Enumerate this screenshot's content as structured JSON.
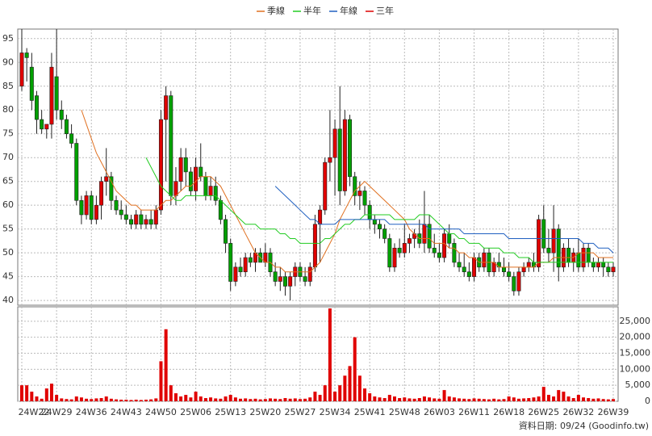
{
  "chart_data": {
    "type": "candlestick",
    "grid": true,
    "up_color": "#e00000",
    "down_color": "#00a000",
    "ylim": [
      39,
      97
    ],
    "yticks": [
      40,
      45,
      50,
      55,
      60,
      65,
      70,
      75,
      80,
      85,
      90,
      95
    ],
    "categories": [
      "24W22",
      null,
      null,
      null,
      null,
      null,
      null,
      "24W29",
      null,
      null,
      null,
      null,
      null,
      null,
      "24W36",
      null,
      null,
      null,
      null,
      null,
      null,
      "24W43",
      null,
      null,
      null,
      null,
      null,
      null,
      "24W50",
      null,
      null,
      null,
      null,
      null,
      null,
      "25W06",
      null,
      null,
      null,
      null,
      null,
      null,
      "25W13",
      null,
      null,
      null,
      null,
      null,
      null,
      "25W20",
      null,
      null,
      null,
      null,
      null,
      null,
      "25W27",
      null,
      null,
      null,
      null,
      null,
      null,
      "25W34",
      null,
      null,
      null,
      null,
      null,
      null,
      "25W41",
      null,
      null,
      null,
      null,
      null,
      null,
      "25W48",
      null,
      null,
      null,
      null,
      null,
      null,
      "26W03",
      null,
      null,
      null,
      null,
      null,
      null,
      "26W11",
      null,
      null,
      null,
      null,
      null,
      null,
      "26W18",
      null,
      null,
      null,
      null,
      null,
      null,
      "26W25",
      null,
      null,
      null,
      null,
      null,
      null,
      "26W32",
      null,
      null,
      null,
      null,
      null,
      null,
      "26W39"
    ],
    "candles": [
      [
        85,
        97,
        84,
        92
      ],
      [
        92,
        93,
        86,
        91
      ],
      [
        89,
        92,
        80,
        82
      ],
      [
        83,
        84,
        75,
        78
      ],
      [
        78,
        80,
        75,
        76
      ],
      [
        76,
        77,
        74,
        77
      ],
      [
        77,
        92,
        74,
        89
      ],
      [
        87,
        97,
        78,
        80
      ],
      [
        80,
        82,
        76,
        78
      ],
      [
        78,
        79,
        74,
        75
      ],
      [
        75,
        77,
        72,
        73
      ],
      [
        73,
        74,
        60,
        61
      ],
      [
        61,
        62,
        56,
        58
      ],
      [
        58,
        63,
        57,
        62
      ],
      [
        62,
        63,
        56,
        57
      ],
      [
        57,
        62,
        56,
        60
      ],
      [
        60,
        66,
        57,
        65
      ],
      [
        65,
        72,
        62,
        66
      ],
      [
        66,
        67,
        59,
        61
      ],
      [
        61,
        62,
        58,
        59
      ],
      [
        59,
        61,
        57,
        58
      ],
      [
        58,
        60,
        56,
        57
      ],
      [
        57,
        58,
        55,
        56
      ],
      [
        56,
        59,
        55,
        58
      ],
      [
        58,
        59,
        55,
        56
      ],
      [
        56,
        58,
        55,
        57
      ],
      [
        57,
        59,
        55,
        56
      ],
      [
        56,
        60,
        55,
        59
      ],
      [
        59,
        80,
        58,
        78
      ],
      [
        78,
        85,
        65,
        83
      ],
      [
        83,
        84,
        60,
        62
      ],
      [
        62,
        68,
        60,
        65
      ],
      [
        65,
        72,
        63,
        70
      ],
      [
        70,
        72,
        64,
        67
      ],
      [
        67,
        68,
        62,
        63
      ],
      [
        63,
        70,
        61,
        68
      ],
      [
        68,
        73,
        65,
        66
      ],
      [
        66,
        67,
        61,
        62
      ],
      [
        62,
        66,
        61,
        64
      ],
      [
        64,
        66,
        60,
        61
      ],
      [
        61,
        62,
        56,
        57
      ],
      [
        57,
        58,
        50,
        52
      ],
      [
        52,
        53,
        42,
        44
      ],
      [
        44,
        48,
        43,
        47
      ],
      [
        47,
        49,
        45,
        46
      ],
      [
        46,
        50,
        45,
        49
      ],
      [
        49,
        50,
        47,
        48
      ],
      [
        48,
        51,
        46,
        50
      ],
      [
        50,
        51,
        48,
        48
      ],
      [
        48,
        52,
        47,
        50
      ],
      [
        50,
        51,
        45,
        46
      ],
      [
        46,
        48,
        43,
        44
      ],
      [
        44,
        47,
        42,
        45
      ],
      [
        45,
        46,
        41,
        43
      ],
      [
        43,
        46,
        40,
        45
      ],
      [
        45,
        48,
        43,
        47
      ],
      [
        47,
        48,
        44,
        45
      ],
      [
        45,
        47,
        43,
        44
      ],
      [
        44,
        48,
        43,
        47
      ],
      [
        47,
        58,
        46,
        56
      ],
      [
        56,
        60,
        48,
        59
      ],
      [
        59,
        70,
        58,
        69
      ],
      [
        69,
        80,
        65,
        70
      ],
      [
        70,
        78,
        62,
        76
      ],
      [
        76,
        85,
        60,
        63
      ],
      [
        63,
        80,
        62,
        78
      ],
      [
        78,
        79,
        64,
        66
      ],
      [
        66,
        67,
        60,
        62
      ],
      [
        62,
        65,
        59,
        63
      ],
      [
        63,
        64,
        58,
        60
      ],
      [
        60,
        61,
        55,
        57
      ],
      [
        57,
        58,
        54,
        56
      ],
      [
        56,
        57,
        53,
        55
      ],
      [
        55,
        56,
        52,
        53
      ],
      [
        53,
        54,
        46,
        47
      ],
      [
        47,
        52,
        46,
        51
      ],
      [
        51,
        53,
        49,
        50
      ],
      [
        50,
        56,
        49,
        52
      ],
      [
        52,
        54,
        50,
        53
      ],
      [
        53,
        55,
        51,
        54
      ],
      [
        54,
        57,
        51,
        52
      ],
      [
        52,
        63,
        50,
        56
      ],
      [
        56,
        58,
        50,
        51
      ],
      [
        51,
        54,
        49,
        50
      ],
      [
        50,
        52,
        48,
        49
      ],
      [
        49,
        55,
        48,
        54
      ],
      [
        54,
        56,
        51,
        52
      ],
      [
        52,
        53,
        47,
        48
      ],
      [
        48,
        50,
        46,
        47
      ],
      [
        47,
        50,
        45,
        46
      ],
      [
        46,
        48,
        44,
        45
      ],
      [
        45,
        50,
        44,
        49
      ],
      [
        49,
        50,
        46,
        47
      ],
      [
        47,
        51,
        46,
        50
      ],
      [
        50,
        51,
        45,
        46
      ],
      [
        46,
        49,
        45,
        48
      ],
      [
        48,
        50,
        46,
        47
      ],
      [
        47,
        49,
        45,
        46
      ],
      [
        46,
        48,
        44,
        45
      ],
      [
        45,
        46,
        41,
        42
      ],
      [
        42,
        47,
        41,
        46
      ],
      [
        46,
        48,
        45,
        47
      ],
      [
        47,
        49,
        46,
        48
      ],
      [
        48,
        50,
        46,
        47
      ],
      [
        47,
        58,
        46,
        57
      ],
      [
        57,
        60,
        50,
        51
      ],
      [
        51,
        55,
        48,
        50
      ],
      [
        50,
        60,
        46,
        55
      ],
      [
        55,
        56,
        44,
        47
      ],
      [
        47,
        52,
        46,
        51
      ],
      [
        51,
        53,
        47,
        48
      ],
      [
        48,
        51,
        46,
        50
      ],
      [
        50,
        53,
        46,
        47
      ],
      [
        47,
        52,
        46,
        51
      ],
      [
        51,
        52,
        47,
        48
      ],
      [
        48,
        49,
        46,
        47
      ],
      [
        47,
        49,
        46,
        48
      ],
      [
        48,
        49,
        45,
        47
      ],
      [
        47,
        48,
        45,
        46
      ],
      [
        46,
        48,
        45,
        47
      ]
    ],
    "series": [
      {
        "name": "季線",
        "color": "#e07020",
        "values": [
          null,
          null,
          null,
          null,
          null,
          null,
          null,
          null,
          null,
          null,
          null,
          null,
          80,
          77,
          74,
          71,
          69,
          67,
          65,
          63,
          62,
          61,
          60,
          60,
          59,
          59,
          59,
          59,
          60,
          61,
          61,
          62,
          63,
          64,
          64,
          65,
          66,
          66,
          66,
          65,
          64,
          62,
          60,
          58,
          56,
          54,
          52,
          50,
          49,
          48,
          48,
          47,
          47,
          46,
          46,
          46,
          46,
          46,
          46,
          47,
          48,
          50,
          52,
          54,
          57,
          59,
          61,
          63,
          64,
          65,
          64,
          63,
          62,
          61,
          60,
          59,
          58,
          57,
          55,
          54,
          53,
          53,
          53,
          52,
          52,
          52,
          51,
          51,
          50,
          50,
          49,
          49,
          48,
          48,
          48,
          48,
          47,
          47,
          47,
          47,
          47,
          47,
          47,
          47,
          48,
          48,
          48,
          49,
          49,
          49,
          49,
          49,
          50,
          50,
          50,
          50,
          49,
          49,
          49,
          49
        ]
      },
      {
        "name": "半年",
        "color": "#22cc22",
        "values": [
          null,
          null,
          null,
          null,
          null,
          null,
          null,
          null,
          null,
          null,
          null,
          null,
          null,
          null,
          null,
          null,
          null,
          null,
          null,
          null,
          null,
          null,
          null,
          null,
          null,
          70,
          68,
          66,
          64,
          63,
          62,
          61,
          61,
          62,
          62,
          62,
          62,
          62,
          62,
          62,
          61,
          60,
          59,
          58,
          57,
          56,
          56,
          56,
          55,
          55,
          55,
          55,
          54,
          54,
          53,
          53,
          52,
          52,
          52,
          52,
          52,
          53,
          53,
          54,
          55,
          56,
          56,
          57,
          57,
          58,
          58,
          58,
          58,
          58,
          58,
          57,
          57,
          57,
          57,
          57,
          58,
          58,
          58,
          57,
          56,
          55,
          54,
          54,
          53,
          53,
          52,
          52,
          52,
          51,
          51,
          51,
          51,
          50,
          50,
          50,
          49,
          49,
          49,
          48,
          48,
          48,
          48,
          48,
          48,
          48,
          48,
          48,
          48,
          48,
          48,
          48,
          48,
          48,
          48,
          48
        ]
      },
      {
        "name": "年線",
        "color": "#2060c0",
        "values": [
          null,
          null,
          null,
          null,
          null,
          null,
          null,
          null,
          null,
          null,
          null,
          null,
          null,
          null,
          null,
          null,
          null,
          null,
          null,
          null,
          null,
          null,
          null,
          null,
          null,
          null,
          null,
          null,
          null,
          null,
          null,
          null,
          null,
          null,
          null,
          null,
          null,
          null,
          null,
          null,
          null,
          null,
          null,
          null,
          null,
          null,
          null,
          null,
          null,
          null,
          null,
          64,
          63,
          62,
          61,
          60,
          59,
          58,
          57,
          57,
          56,
          56,
          56,
          56,
          57,
          57,
          57,
          57,
          57,
          57,
          57,
          57,
          57,
          57,
          56,
          56,
          56,
          56,
          56,
          56,
          56,
          56,
          55,
          55,
          55,
          55,
          55,
          55,
          55,
          54,
          54,
          54,
          54,
          54,
          54,
          54,
          54,
          54,
          53,
          53,
          53,
          53,
          53,
          53,
          53,
          53,
          53,
          53,
          53,
          53,
          53,
          53,
          53,
          52,
          52,
          52,
          51,
          51,
          51,
          50
        ]
      },
      {
        "name": "三年",
        "color": "#dd0000"
      }
    ],
    "volume": {
      "type": "bar",
      "color": "#e00000",
      "ylim": [
        0,
        29500
      ],
      "yticks": [
        0,
        {
          "value": 5000,
          "label": "5,000"
        },
        {
          "value": 10000,
          "label": "10,000"
        },
        {
          "value": 15000,
          "label": "15,000"
        },
        {
          "value": 20000,
          "label": "20,000"
        },
        {
          "value": 25000,
          "label": "25,000"
        }
      ],
      "values": [
        5000,
        5000,
        3000,
        1500,
        800,
        4000,
        5500,
        2000,
        900,
        700,
        600,
        1500,
        1200,
        800,
        700,
        900,
        1000,
        1500,
        800,
        600,
        500,
        500,
        400,
        500,
        400,
        500,
        600,
        900,
        12500,
        22500,
        5000,
        2500,
        1500,
        2000,
        1200,
        3000,
        1500,
        1000,
        1200,
        900,
        800,
        1500,
        2000,
        1200,
        800,
        900,
        700,
        800,
        600,
        700,
        900,
        800,
        700,
        1000,
        800,
        900,
        700,
        800,
        1200,
        3000,
        2000,
        5000,
        29000,
        3000,
        5000,
        8000,
        11000,
        20000,
        8000,
        4000,
        2500,
        1500,
        1200,
        1000,
        2000,
        1500,
        1000,
        1200,
        900,
        800,
        1000,
        1500,
        1200,
        900,
        800,
        3500,
        1500,
        1200,
        900,
        800,
        700,
        900,
        800,
        700,
        600,
        800,
        600,
        700,
        1500,
        1200,
        800,
        900,
        1000,
        1200,
        1500,
        4500,
        2000,
        1500,
        3500,
        3000,
        1500,
        1000,
        2000,
        1200,
        1000,
        800,
        900,
        700,
        600,
        700
      ]
    },
    "footer": "資料日期: 09/24 (Goodinfo.tw)"
  }
}
